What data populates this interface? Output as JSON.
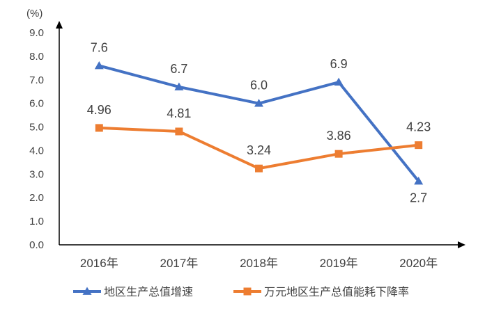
{
  "chart_data": {
    "type": "line",
    "title": "",
    "ylabel": "(%)",
    "xlabel": "",
    "ylim": [
      0,
      9
    ],
    "yticks": [
      "0.0",
      "1.0",
      "2.0",
      "3.0",
      "4.0",
      "5.0",
      "6.0",
      "7.0",
      "8.0",
      "9.0"
    ],
    "categories": [
      "2016年",
      "2017年",
      "2018年",
      "2019年",
      "2020年"
    ],
    "grid": false,
    "legend_position": "bottom",
    "series": [
      {
        "name": "地区生产总值增速",
        "values": [
          7.6,
          6.7,
          6.0,
          6.9,
          2.7
        ],
        "labels": [
          "7.6",
          "6.7",
          "6.0",
          "6.9",
          "2.7"
        ],
        "color": "#4472C4",
        "marker": "triangle"
      },
      {
        "name": "万元地区生产总值能耗下降率",
        "values": [
          4.96,
          4.81,
          3.24,
          3.86,
          4.23
        ],
        "labels": [
          "4.96",
          "4.81",
          "3.24",
          "3.86",
          "4.23"
        ],
        "color": "#ED7D31",
        "marker": "square"
      }
    ]
  }
}
